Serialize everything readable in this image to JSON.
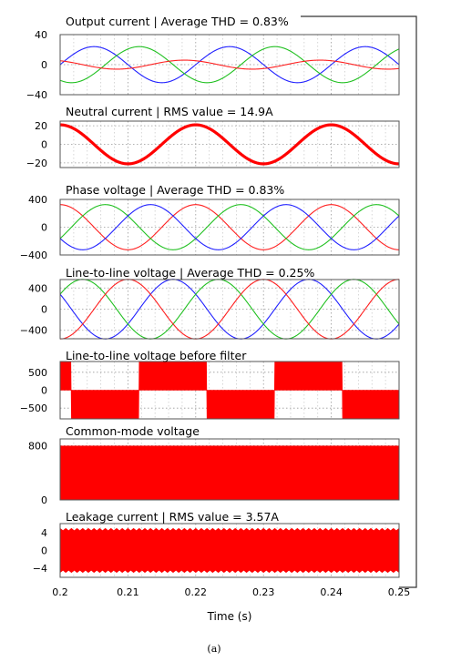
{
  "caption": "(a)",
  "chart_data": {
    "type": "line",
    "xlabel": "Time (s)",
    "xlim": [
      0.2,
      0.25
    ],
    "x_ticks": [
      "0.2",
      "0.21",
      "0.22",
      "0.23",
      "0.24",
      "0.25"
    ],
    "x_tick_values": [
      0.2,
      0.21,
      0.22,
      0.23,
      0.24,
      0.25
    ],
    "grid": true,
    "panels": [
      {
        "title": "Output current | Average THD = 0.83%",
        "ylim": [
          -40,
          40
        ],
        "y_ticks": [
          "40",
          "0",
          "−40"
        ],
        "y_tick_values": [
          40,
          0,
          -40
        ],
        "series": [
          {
            "kind": "sine",
            "amplitude": 24,
            "frequency_hz": 50,
            "phase_deg": 0,
            "color": "#2020ff"
          },
          {
            "kind": "sine",
            "amplitude": 24,
            "frequency_hz": 50,
            "phase_deg": -120,
            "color": "#20c020"
          },
          {
            "kind": "sine",
            "amplitude": 6,
            "frequency_hz": 50,
            "phase_deg": 120,
            "color": "#ff2020"
          }
        ]
      },
      {
        "title": "Neutral current | RMS value = 14.9A",
        "ylim": [
          -25,
          25
        ],
        "y_ticks": [
          "20",
          "0",
          "−20"
        ],
        "y_tick_values": [
          20,
          0,
          -20
        ],
        "series": [
          {
            "kind": "sine",
            "amplitude": 21,
            "frequency_hz": 50,
            "phase_deg": 90,
            "color": "#ff0000",
            "bold": true
          }
        ]
      },
      {
        "title": "Phase voltage | Average THD = 0.83%",
        "ylim": [
          -400,
          400
        ],
        "y_ticks": [
          "400",
          "0",
          "−400"
        ],
        "y_tick_values": [
          400,
          0,
          -400
        ],
        "series": [
          {
            "kind": "sine",
            "amplitude": 325,
            "frequency_hz": 50,
            "phase_deg": 90,
            "color": "#ff2020"
          },
          {
            "kind": "sine",
            "amplitude": 325,
            "frequency_hz": 50,
            "phase_deg": -30,
            "color": "#20c020"
          },
          {
            "kind": "sine",
            "amplitude": 325,
            "frequency_hz": 50,
            "phase_deg": 210,
            "color": "#2020ff"
          }
        ]
      },
      {
        "title": "Line-to-line voltage | Average THD = 0.25%",
        "ylim": [
          -560,
          560
        ],
        "y_ticks": [
          "400",
          "0",
          "−400"
        ],
        "y_tick_values": [
          400,
          0,
          -400
        ],
        "series": [
          {
            "kind": "sine",
            "amplitude": 563,
            "frequency_hz": 50,
            "phase_deg": 150,
            "color": "#2020ff"
          },
          {
            "kind": "sine",
            "amplitude": 563,
            "frequency_hz": 50,
            "phase_deg": 30,
            "color": "#20c020"
          },
          {
            "kind": "sine",
            "amplitude": 563,
            "frequency_hz": 50,
            "phase_deg": 270,
            "color": "#ff2020"
          }
        ]
      },
      {
        "title": "Line-to-line voltage before filter",
        "ylim": [
          -800,
          800
        ],
        "y_ticks": [
          "500",
          "0",
          "−500"
        ],
        "y_tick_values": [
          500,
          0,
          -500
        ],
        "series": [
          {
            "kind": "pwm_band",
            "amplitude": 800,
            "frequency_hz": 50,
            "phase_deg": 150,
            "color": "#ff0000"
          }
        ]
      },
      {
        "title": "Common-mode voltage",
        "ylim": [
          0,
          900
        ],
        "y_ticks": [
          "800",
          "0"
        ],
        "y_tick_values": [
          800,
          0
        ],
        "series": [
          {
            "kind": "band",
            "low": 0,
            "high": 800,
            "color": "#ff0000"
          }
        ]
      },
      {
        "title": "Leakage current | RMS value = 3.57A",
        "ylim": [
          -6,
          6
        ],
        "y_ticks": [
          "4",
          "0",
          "−4"
        ],
        "y_tick_values": [
          4,
          0,
          -4
        ],
        "series": [
          {
            "kind": "ripple_band",
            "amplitude": 5,
            "ripple": 0.5,
            "color": "#ff0000"
          }
        ]
      }
    ]
  }
}
